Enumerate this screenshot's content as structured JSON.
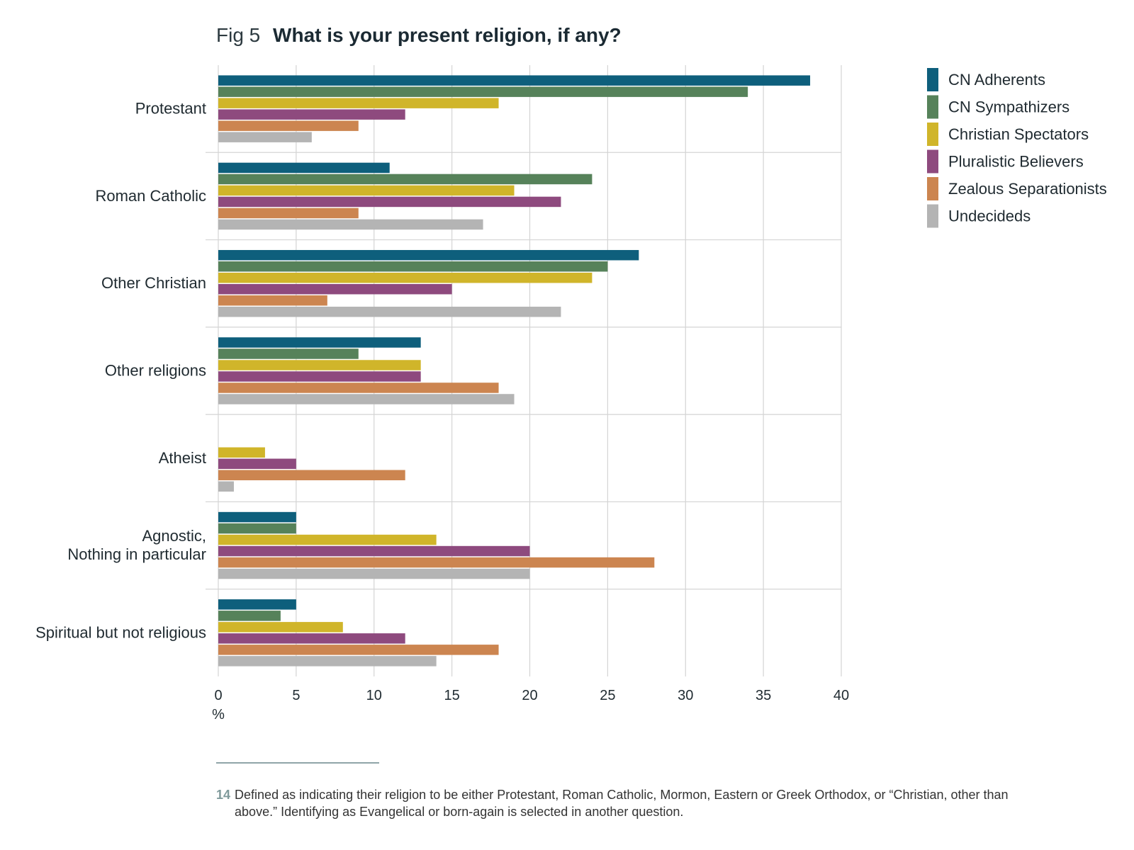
{
  "title_prefix": "Fig 5",
  "title": "What is your present religion, if any?",
  "chart_data": {
    "type": "bar",
    "orientation": "horizontal",
    "categories": [
      "Protestant",
      "Roman Catholic",
      "Other Christian",
      "Other religions",
      "Atheist",
      "Agnostic,\nNothing in particular",
      "Spiritual but not religious"
    ],
    "series": [
      {
        "name": "CN Adherents",
        "color": "#0e5f7c",
        "values": [
          38,
          11,
          27,
          13,
          0,
          5,
          5
        ]
      },
      {
        "name": "CN Sympathizers",
        "color": "#56825a",
        "values": [
          34,
          24,
          25,
          9,
          0,
          5,
          4
        ]
      },
      {
        "name": "Christian Spectators",
        "color": "#d0b52a",
        "values": [
          18,
          19,
          24,
          13,
          3,
          14,
          8
        ]
      },
      {
        "name": "Pluralistic Believers",
        "color": "#8e4a7e",
        "values": [
          12,
          22,
          15,
          13,
          5,
          20,
          12
        ]
      },
      {
        "name": "Zealous Separationists",
        "color": "#cc8550",
        "values": [
          9,
          9,
          7,
          18,
          12,
          28,
          18
        ]
      },
      {
        "name": "Undecideds",
        "color": "#b4b4b4",
        "values": [
          6,
          17,
          22,
          19,
          1,
          20,
          14
        ]
      }
    ],
    "xlim": [
      0,
      40
    ],
    "xticks": [
      0,
      5,
      10,
      15,
      20,
      25,
      30,
      35,
      40
    ],
    "xlabel": "%",
    "grid": true,
    "legend_position": "right"
  },
  "footnote": {
    "number": "14",
    "text": "Defined as indicating their religion to be either Protestant, Roman Catholic, Mormon, Eastern or Greek Orthodox, or “Christian, other than above.” Identifying as Evangelical or born-again is selected in another question."
  }
}
